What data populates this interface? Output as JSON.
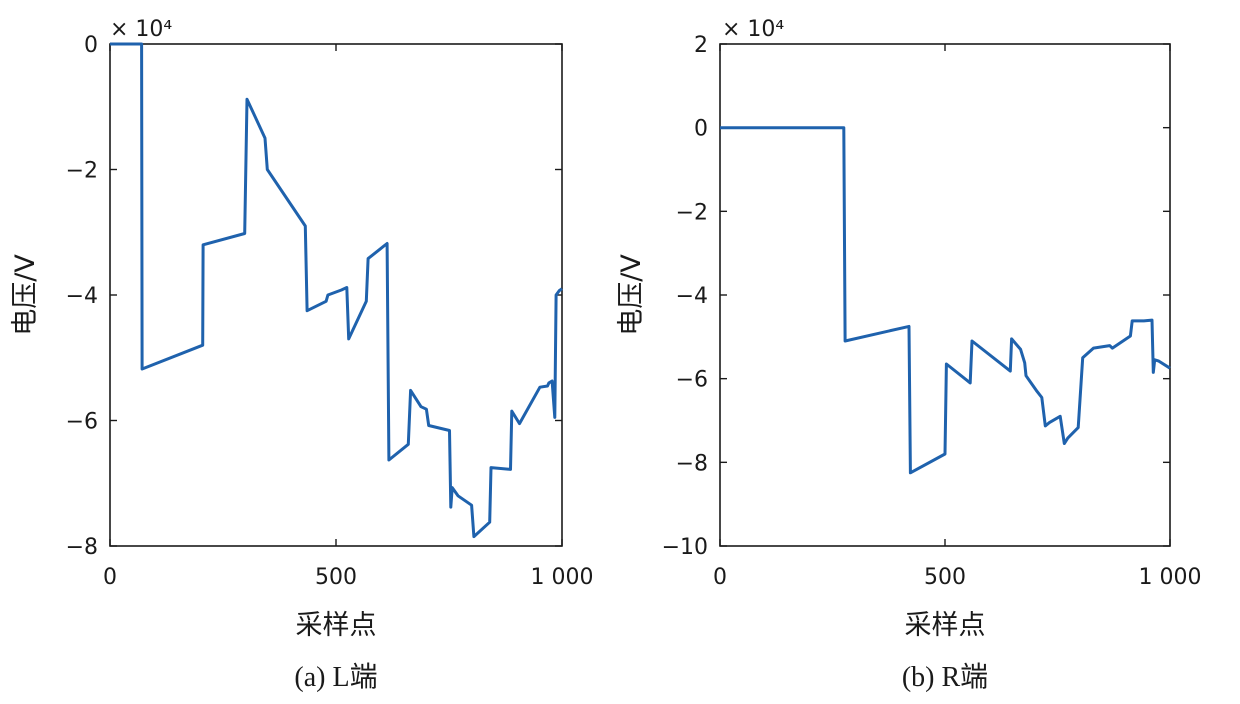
{
  "colors": {
    "line": "#1f62ad",
    "axis": "#1a1a1a"
  },
  "chart_data": [
    {
      "type": "line",
      "caption": "(a) L端",
      "xlabel": "采样点",
      "ylabel": "电压/V",
      "exponent": "× 10⁴",
      "xlim": [
        0,
        1000
      ],
      "ylim": [
        -8,
        0
      ],
      "xticks": [
        0,
        500,
        1000
      ],
      "xtick_labels": [
        "0",
        "500",
        "1 000"
      ],
      "yticks": [
        0,
        -2,
        -4,
        -6,
        -8
      ],
      "ytick_labels": [
        "0",
        "−2",
        "−4",
        "−6",
        "−8"
      ],
      "series": [
        {
          "x": [
            0,
            70,
            71,
            205,
            206,
            298,
            303,
            343,
            348,
            432,
            436,
            478,
            482,
            512,
            524,
            528,
            567,
            571,
            613,
            617,
            660,
            665,
            688,
            700,
            705,
            751,
            754,
            757,
            770,
            800,
            805,
            840,
            843,
            886,
            889,
            906,
            951,
            968,
            971,
            978,
            984,
            987,
            994,
            1000
          ],
          "y": [
            0,
            0,
            -5.18,
            -4.8,
            -3.2,
            -3.02,
            -0.88,
            -1.5,
            -2.0,
            -2.9,
            -4.25,
            -4.1,
            -4.0,
            -3.92,
            -3.88,
            -4.7,
            -4.1,
            -3.42,
            -3.18,
            -6.63,
            -6.38,
            -5.52,
            -5.78,
            -5.82,
            -6.08,
            -6.16,
            -7.38,
            -7.07,
            -7.2,
            -7.35,
            -7.85,
            -7.62,
            -6.75,
            -6.78,
            -5.85,
            -6.05,
            -5.47,
            -5.45,
            -5.4,
            -5.37,
            -5.95,
            -4.0,
            -3.93,
            -3.9
          ]
        }
      ]
    },
    {
      "type": "line",
      "caption": "(b) R端",
      "xlabel": "采样点",
      "ylabel": "电压/V",
      "exponent": "× 10⁴",
      "xlim": [
        0,
        1000
      ],
      "ylim": [
        -10,
        2
      ],
      "xticks": [
        0,
        500,
        1000
      ],
      "xtick_labels": [
        "0",
        "500",
        "1 000"
      ],
      "yticks": [
        2,
        0,
        -2,
        -4,
        -6,
        -8,
        -10
      ],
      "ytick_labels": [
        "2",
        "0",
        "−2",
        "−4",
        "−6",
        "−8",
        "−10"
      ],
      "series": [
        {
          "x": [
            0,
            275,
            278,
            420,
            423,
            500,
            503,
            556,
            560,
            645,
            648,
            668,
            677,
            680,
            703,
            715,
            723,
            732,
            756,
            765,
            773,
            796,
            806,
            830,
            866,
            872,
            912,
            916,
            942,
            960,
            963,
            966,
            975,
            1000
          ],
          "y": [
            0,
            0,
            -5.1,
            -4.75,
            -8.25,
            -7.8,
            -5.65,
            -6.1,
            -5.1,
            -5.82,
            -5.05,
            -5.3,
            -5.62,
            -5.93,
            -6.28,
            -6.45,
            -7.13,
            -7.05,
            -6.9,
            -7.55,
            -7.42,
            -7.17,
            -5.5,
            -5.27,
            -5.21,
            -5.27,
            -4.98,
            -4.62,
            -4.62,
            -4.6,
            -5.85,
            -5.55,
            -5.58,
            -5.75
          ]
        }
      ]
    }
  ]
}
